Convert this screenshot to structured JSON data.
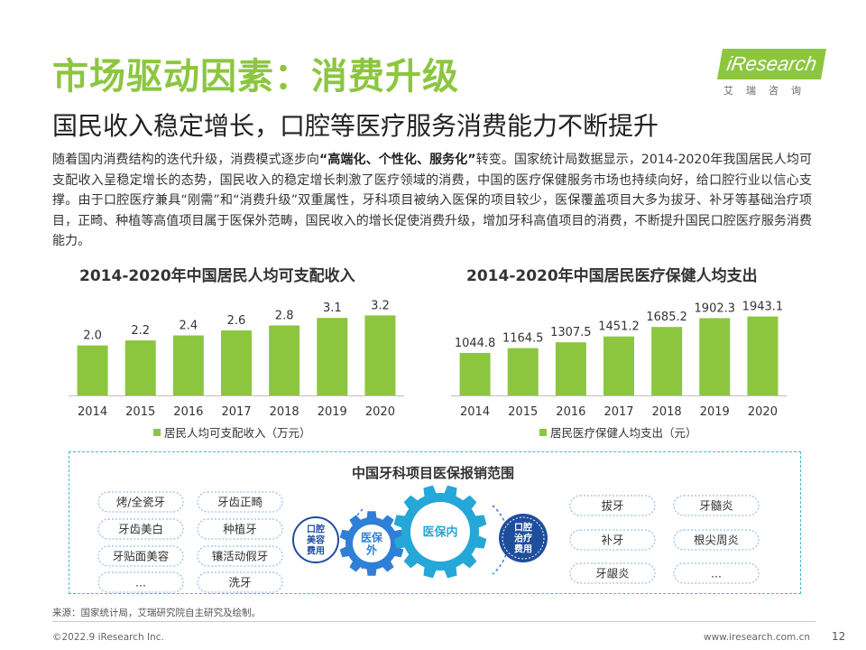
{
  "header": {
    "title": "市场驱动因素：消费升级",
    "subtitle": "国民收入稳定增长，口腔等医疗服务消费能力不断提升"
  },
  "logo": {
    "brand": "iResearch",
    "cn": "艾瑞咨询"
  },
  "intro": {
    "part1": "随着国内消费结构的迭代升级，消费模式逐步向",
    "highlight": "“高端化、个性化、服务化”",
    "part2": "转变。国家统计局数据显示，2014-2020年我国居民人均可支配收入呈稳定增长的态势，国民收入的稳定增长刺激了医疗领域的消费，中国的医疗保健服务市场也持续向好，给口腔行业以信心支撑。由于口腔医疗兼具“刚需”和“消费升级”双重属性，牙科项目被纳入医保的项目较少，医保覆盖项目大多为拔牙、补牙等基础治疗项目，正畸、种植等高值项目属于医保外范畴，国民收入的增长促使消费升级，增加牙科高值项目的消费，不断提升国民口腔医疗服务消费能力。"
  },
  "chart_data": [
    {
      "type": "bar",
      "title": "2014-2020年中国居民人均可支配收入",
      "categories": [
        "2014",
        "2015",
        "2016",
        "2017",
        "2018",
        "2019",
        "2020"
      ],
      "series": [
        {
          "name": "居民人均可支配收入（万元）",
          "values": [
            2.0,
            2.2,
            2.4,
            2.6,
            2.8,
            3.1,
            3.2
          ]
        }
      ],
      "value_labels": [
        "2.0",
        "2.2",
        "2.4",
        "2.6",
        "2.8",
        "3.1",
        "3.2"
      ],
      "ylim": [
        0,
        3.9
      ],
      "color": "#8cc63f",
      "legend": "bottom"
    },
    {
      "type": "bar",
      "title": "2014-2020年中国居民医疗保健人均支出",
      "categories": [
        "2014",
        "2015",
        "2016",
        "2017",
        "2018",
        "2019",
        "2020"
      ],
      "series": [
        {
          "name": "居民医疗保健人均支出（元）",
          "values": [
            1044.8,
            1164.5,
            1307.5,
            1451.2,
            1685.2,
            1902.3,
            1943.1
          ]
        }
      ],
      "value_labels": [
        "1044.8",
        "1164.5",
        "1307.5",
        "1451.2",
        "1685.2",
        "1902.3",
        "1943.1"
      ],
      "ylim": [
        0,
        2400
      ],
      "color": "#8cc63f",
      "legend": "bottom"
    }
  ],
  "scope": {
    "title": "中国牙科项目医保报销范围",
    "left_items": [
      "烤/全瓷牙",
      "牙齿正畸",
      "牙齿美白",
      "种植牙",
      "牙贴面美容",
      "镶活动假牙",
      "...",
      "洗牙"
    ],
    "right_items": [
      "拔牙",
      "牙髓炎",
      "补牙",
      "根尖周炎",
      "牙龈炎",
      "..."
    ],
    "label_left": "口腔美容费用",
    "gear_outside": "医保外",
    "gear_inside": "医保内",
    "label_right": "口腔治疗费用",
    "colors": {
      "navy": "#1f4e9c",
      "blue": "#2f7fd6",
      "cyan": "#25a7d8",
      "border": "#46b5d1"
    }
  },
  "footer": {
    "source": "来源：国家统计局，艾瑞研究院自主研究及绘制。",
    "copyright": "©2022.9 iResearch Inc.",
    "website": "www.iresearch.com.cn",
    "page": "12"
  }
}
